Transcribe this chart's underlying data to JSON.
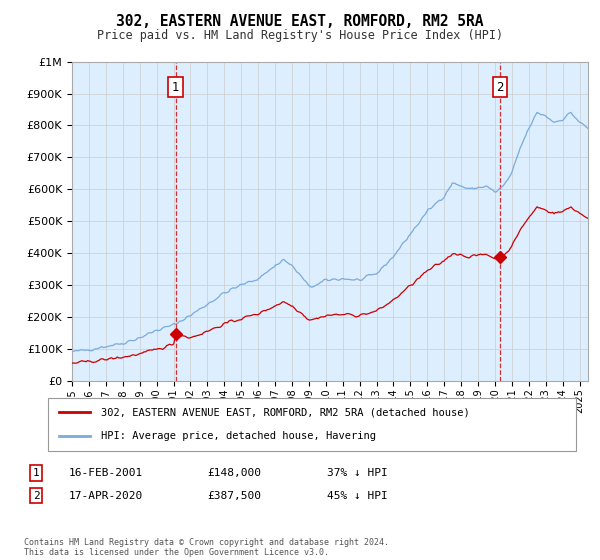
{
  "title": "302, EASTERN AVENUE EAST, ROMFORD, RM2 5RA",
  "subtitle": "Price paid vs. HM Land Registry's House Price Index (HPI)",
  "ylim": [
    0,
    1000000
  ],
  "yticks": [
    0,
    100000,
    200000,
    300000,
    400000,
    500000,
    600000,
    700000,
    800000,
    900000,
    1000000
  ],
  "ytick_labels": [
    "£0",
    "£100K",
    "£200K",
    "£300K",
    "£400K",
    "£500K",
    "£600K",
    "£700K",
    "£800K",
    "£900K",
    "£1M"
  ],
  "legend_line1": "302, EASTERN AVENUE EAST, ROMFORD, RM2 5RA (detached house)",
  "legend_line2": "HPI: Average price, detached house, Havering",
  "price_paid_color": "#cc0000",
  "hpi_color": "#7aabdb",
  "bg_color": "#ddeeff",
  "annotation1_date": "16-FEB-2001",
  "annotation1_price": "£148,000",
  "annotation1_hpi": "37% ↓ HPI",
  "annotation2_date": "17-APR-2020",
  "annotation2_price": "£387,500",
  "annotation2_hpi": "45% ↓ HPI",
  "footnote": "Contains HM Land Registry data © Crown copyright and database right 2024.\nThis data is licensed under the Open Government Licence v3.0.",
  "sale1_x": 2001.12,
  "sale1_y": 148000,
  "sale2_x": 2020.29,
  "sale2_y": 387500,
  "xlim_start": 1995,
  "xlim_end": 2025.5
}
